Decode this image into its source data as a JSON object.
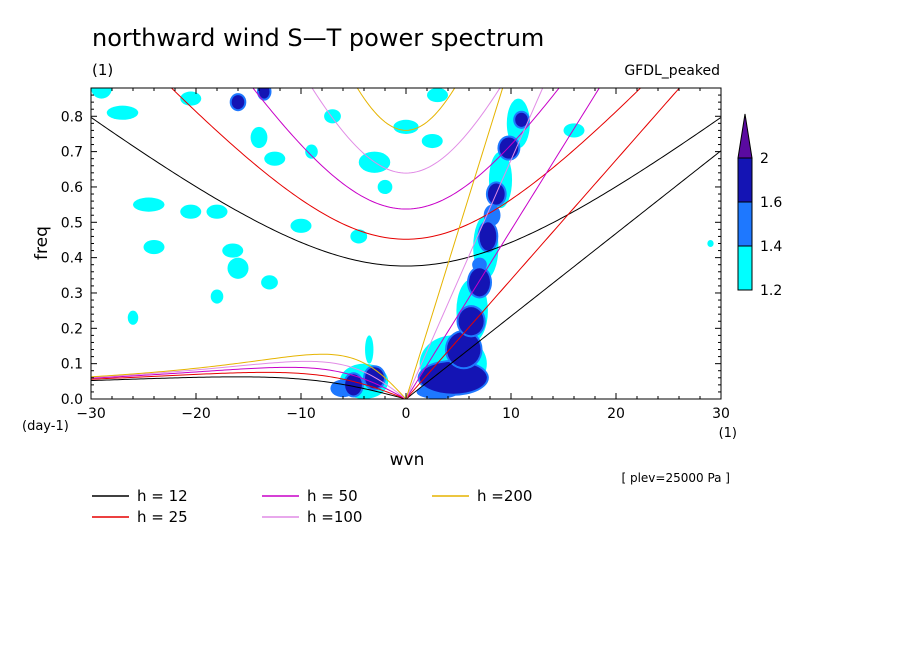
{
  "chart_data": {
    "type": "contour",
    "title": "northward wind S—T power spectrum",
    "subtitle_left": "(1)",
    "subtitle_right": "GFDL_peaked",
    "xlabel": "wvn",
    "ylabel": "freq",
    "x_unit": "(1)",
    "y_unit": "(day-1)",
    "annotation": "[ plev=25000 Pa ]",
    "xlim": [
      -30,
      30
    ],
    "ylim": [
      0,
      0.88
    ],
    "xticks": [
      -30,
      -20,
      -10,
      0,
      10,
      20,
      30
    ],
    "xtick_labels": [
      "−30",
      "−20",
      "−10",
      "0",
      "10",
      "20",
      "30"
    ],
    "yticks": [
      0,
      0.1,
      0.2,
      0.3,
      0.4,
      0.5,
      0.6,
      0.7,
      0.8
    ],
    "ytick_labels": [
      "0.0",
      "0.1",
      "0.2",
      "0.3",
      "0.4",
      "0.5",
      "0.6",
      "0.7",
      "0.8"
    ],
    "colorbar": {
      "levels": [
        "1.2",
        "1.4",
        "1.6",
        "2"
      ],
      "colors": [
        "#00ffff",
        "#1e78ff",
        "#1414b4",
        "#5a0aa0"
      ]
    },
    "dispersion_curves": [
      {
        "label": "h = 12",
        "h": 12,
        "color": "#000000"
      },
      {
        "label": "h = 25",
        "h": 25,
        "color": "#e60000"
      },
      {
        "label": "h = 50",
        "h": 50,
        "color": "#c800c8"
      },
      {
        "label": "h =100",
        "h": 100,
        "color": "#e18ce6"
      },
      {
        "label": "h =200",
        "h": 200,
        "color": "#e6b400"
      }
    ],
    "blobs": [
      {
        "x": 4.5,
        "y": 0.06,
        "rx": 3.2,
        "ry": 0.045,
        "level": 3
      },
      {
        "x": 5.5,
        "y": 0.14,
        "rx": 1.6,
        "ry": 0.05,
        "level": 3
      },
      {
        "x": 6.2,
        "y": 0.22,
        "rx": 1.2,
        "ry": 0.04,
        "level": 3
      },
      {
        "x": 7.0,
        "y": 0.33,
        "rx": 1.0,
        "ry": 0.04,
        "level": 3
      },
      {
        "x": 7.8,
        "y": 0.46,
        "rx": 0.8,
        "ry": 0.04,
        "level": 3
      },
      {
        "x": 8.6,
        "y": 0.58,
        "rx": 0.8,
        "ry": 0.03,
        "level": 3
      },
      {
        "x": 9.8,
        "y": 0.71,
        "rx": 0.9,
        "ry": 0.03,
        "level": 3
      },
      {
        "x": -5.0,
        "y": 0.04,
        "rx": 0.8,
        "ry": 0.03,
        "level": 3
      },
      {
        "x": -3.0,
        "y": 0.06,
        "rx": 0.9,
        "ry": 0.03,
        "level": 3
      },
      {
        "x": -16.0,
        "y": 0.84,
        "rx": 0.6,
        "ry": 0.02,
        "level": 3
      },
      {
        "x": -13.5,
        "y": 0.87,
        "rx": 0.5,
        "ry": 0.02,
        "level": 3
      },
      {
        "x": 11.0,
        "y": 0.79,
        "rx": 0.6,
        "ry": 0.02,
        "level": 3
      },
      {
        "x": -6.0,
        "y": 0.03,
        "rx": 1.2,
        "ry": 0.025,
        "level": 2
      },
      {
        "x": 3.0,
        "y": 0.02,
        "rx": 2.0,
        "ry": 0.02,
        "level": 2
      },
      {
        "x": 8.2,
        "y": 0.52,
        "rx": 0.8,
        "ry": 0.03,
        "level": 2
      },
      {
        "x": 7.0,
        "y": 0.38,
        "rx": 0.7,
        "ry": 0.02,
        "level": 2
      },
      {
        "x": -29.0,
        "y": 0.88,
        "rx": 1.0,
        "ry": 0.03,
        "level": 1
      },
      {
        "x": -27.0,
        "y": 0.81,
        "rx": 1.5,
        "ry": 0.02,
        "level": 1
      },
      {
        "x": -24.5,
        "y": 0.55,
        "rx": 1.5,
        "ry": 0.02,
        "level": 1
      },
      {
        "x": -18.0,
        "y": 0.53,
        "rx": 1.0,
        "ry": 0.02,
        "level": 1
      },
      {
        "x": -14.0,
        "y": 0.74,
        "rx": 0.8,
        "ry": 0.03,
        "level": 1
      },
      {
        "x": -12.5,
        "y": 0.68,
        "rx": 1.0,
        "ry": 0.02,
        "level": 1
      },
      {
        "x": -9.0,
        "y": 0.7,
        "rx": 0.6,
        "ry": 0.02,
        "level": 1
      },
      {
        "x": -3.0,
        "y": 0.67,
        "rx": 1.5,
        "ry": 0.03,
        "level": 1
      },
      {
        "x": 0.0,
        "y": 0.77,
        "rx": 1.2,
        "ry": 0.02,
        "level": 1
      },
      {
        "x": -16.5,
        "y": 0.42,
        "rx": 1.0,
        "ry": 0.02,
        "level": 1
      },
      {
        "x": -24.0,
        "y": 0.43,
        "rx": 1.0,
        "ry": 0.02,
        "level": 1
      },
      {
        "x": -10.0,
        "y": 0.49,
        "rx": 1.0,
        "ry": 0.02,
        "level": 1
      },
      {
        "x": -16.0,
        "y": 0.37,
        "rx": 1.0,
        "ry": 0.03,
        "level": 1
      },
      {
        "x": -7.0,
        "y": 0.8,
        "rx": 0.8,
        "ry": 0.02,
        "level": 1
      },
      {
        "x": 3.0,
        "y": 0.86,
        "rx": 1.0,
        "ry": 0.02,
        "level": 1
      },
      {
        "x": 2.5,
        "y": 0.73,
        "rx": 1.0,
        "ry": 0.02,
        "level": 1
      },
      {
        "x": -20.5,
        "y": 0.85,
        "rx": 1.0,
        "ry": 0.02,
        "level": 1
      },
      {
        "x": -26.0,
        "y": 0.23,
        "rx": 0.5,
        "ry": 0.02,
        "level": 1
      },
      {
        "x": -20.5,
        "y": 0.53,
        "rx": 1.0,
        "ry": 0.02,
        "level": 1
      },
      {
        "x": -2.0,
        "y": 0.6,
        "rx": 0.7,
        "ry": 0.02,
        "level": 1
      },
      {
        "x": -4.5,
        "y": 0.46,
        "rx": 0.8,
        "ry": 0.02,
        "level": 1
      },
      {
        "x": -3.5,
        "y": 0.14,
        "rx": 0.4,
        "ry": 0.04,
        "level": 1
      },
      {
        "x": 4.5,
        "y": 0.1,
        "rx": 3.2,
        "ry": 0.08,
        "level": 1
      },
      {
        "x": 6.3,
        "y": 0.25,
        "rx": 1.5,
        "ry": 0.09,
        "level": 1
      },
      {
        "x": 7.6,
        "y": 0.43,
        "rx": 1.2,
        "ry": 0.09,
        "level": 1
      },
      {
        "x": 9.0,
        "y": 0.62,
        "rx": 1.1,
        "ry": 0.08,
        "level": 1
      },
      {
        "x": 10.7,
        "y": 0.78,
        "rx": 1.1,
        "ry": 0.07,
        "level": 1
      },
      {
        "x": -4.0,
        "y": 0.05,
        "rx": 2.3,
        "ry": 0.05,
        "level": 1
      },
      {
        "x": 16.0,
        "y": 0.76,
        "rx": 1.0,
        "ry": 0.02,
        "level": 1
      },
      {
        "x": -13.0,
        "y": 0.33,
        "rx": 0.8,
        "ry": 0.02,
        "level": 1
      },
      {
        "x": 29.0,
        "y": 0.44,
        "rx": 0.3,
        "ry": 0.01,
        "level": 1
      },
      {
        "x": -18.0,
        "y": 0.29,
        "rx": 0.6,
        "ry": 0.02,
        "level": 1
      }
    ]
  }
}
